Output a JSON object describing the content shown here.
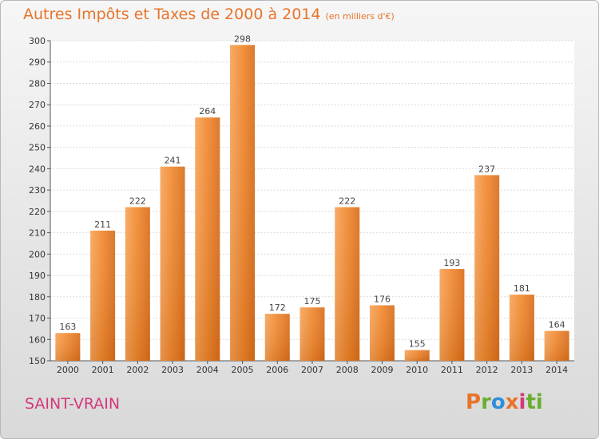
{
  "title_main": "Autres Impôts et Taxes de 2000 à 2014",
  "title_unit": "(en milliers d'€)",
  "place": "SAINT-VRAIN",
  "brand": [
    "P",
    "r",
    "o",
    "x",
    "i",
    "ti"
  ],
  "chart_data": {
    "type": "bar",
    "title": "Autres Impôts et Taxes de 2000 à 2014",
    "subtitle": "(en milliers d'€)",
    "categories": [
      "2000",
      "2001",
      "2002",
      "2003",
      "2004",
      "2005",
      "2006",
      "2007",
      "2008",
      "2009",
      "2010",
      "2011",
      "2012",
      "2013",
      "2014"
    ],
    "values": [
      163,
      211,
      222,
      241,
      264,
      298,
      172,
      175,
      222,
      176,
      155,
      193,
      237,
      181,
      164
    ],
    "ylim": [
      150,
      300
    ],
    "yticks": [
      150,
      160,
      170,
      180,
      190,
      200,
      210,
      220,
      230,
      240,
      250,
      260,
      270,
      280,
      290,
      300
    ],
    "grid": true,
    "bar_color": "#f0882e"
  }
}
